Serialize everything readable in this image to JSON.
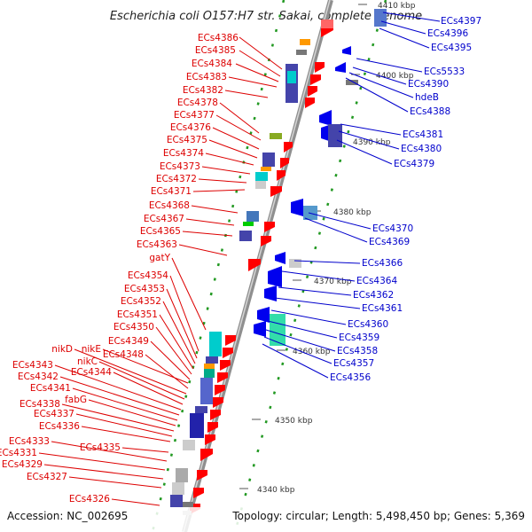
{
  "title": "Escherichia coli O157:H7 str. Sakai, complete genome",
  "footer": {
    "accession": "Accession: NC_002695",
    "topology": "Topology: circular; Length: 5,498,450 bp; Genes: 5,369"
  },
  "kbp_labels": [
    "4410 kbp",
    "4400 kbp",
    "4390 kbp",
    "4380 kbp",
    "4370 kbp",
    "4360 kbp",
    "4350 kbp",
    "4340 kbp"
  ],
  "left_labels": [
    "ECs4386",
    "ECs4385",
    "ECs4384",
    "ECs4383",
    "ECs4382",
    "ECs4378",
    "ECs4377",
    "ECs4376",
    "ECs4375",
    "ECs4374",
    "ECs4373",
    "ECs4372",
    "ECs4371",
    "ECs4368",
    "ECs4367",
    "ECs4365",
    "ECs4363",
    "gatY",
    "ECs4354",
    "ECs4353",
    "ECs4352",
    "ECs4351",
    "ECs4350",
    "ECs4349",
    "nikE",
    "ECs4348",
    "nikD",
    "nikC",
    "ECs4344",
    "ECs4343",
    "ECs4342",
    "ECs4341",
    "fabG",
    "ECs4338",
    "ECs4337",
    "ECs4336",
    "ECs4335",
    "ECs4333",
    "ECs4331",
    "ECs4329",
    "ECs4327",
    "ECs4326"
  ],
  "right_labels": [
    "ECs4397",
    "ECs4396",
    "ECs4395",
    "ECs5533",
    "ECs4390",
    "hdeB",
    "ECs4388",
    "ECs4381",
    "ECs4380",
    "ECs4379",
    "ECs4370",
    "ECs4369",
    "ECs4366",
    "ECs4364",
    "ECs4362",
    "ECs4361",
    "ECs4360",
    "ECs4359",
    "ECs4358",
    "ECs4357",
    "ECs4356"
  ],
  "colors": {
    "forward_gene": "#ff0000",
    "reverse_gene": "#0000ee",
    "backbone": "#999999",
    "tick": "#229922",
    "left_label": "#dd0000",
    "right_label": "#0000cc"
  }
}
